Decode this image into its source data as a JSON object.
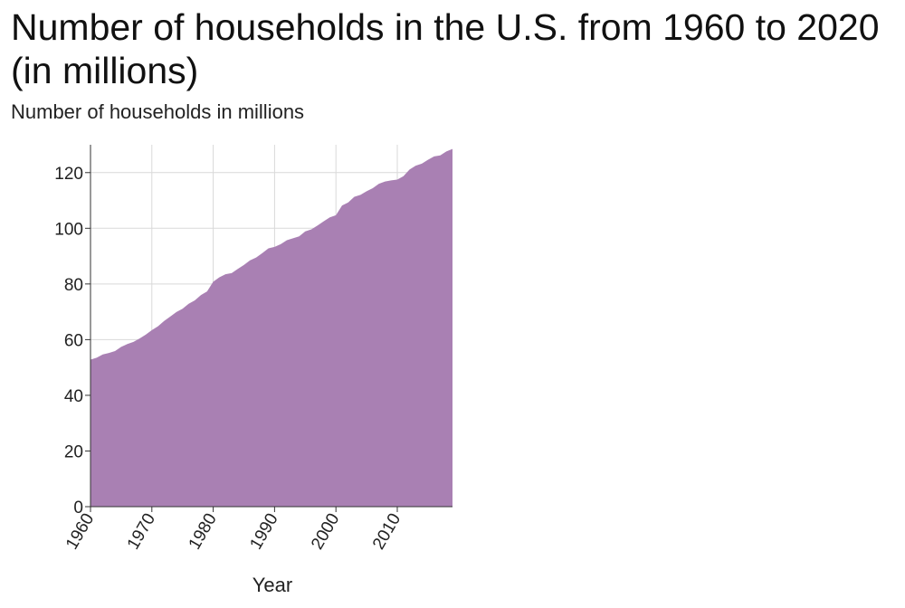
{
  "chart_data": {
    "type": "area",
    "title": "Number of households in the U.S. from 1960 to 2020 (in millions)",
    "xlabel": "Year",
    "ylabel": "Number of households in millions",
    "xlim": [
      1960,
      2019
    ],
    "ylim": [
      0,
      130
    ],
    "x_ticks": [
      "1960",
      "1970",
      "1980",
      "1990",
      "2000",
      "2010"
    ],
    "y_ticks": [
      "0",
      "20",
      "40",
      "60",
      "80",
      "100",
      "120"
    ],
    "grid": true,
    "legend": "none",
    "series": [
      {
        "color": "#a980b3",
        "x": [
          1960,
          1961,
          1962,
          1963,
          1964,
          1965,
          1966,
          1967,
          1968,
          1969,
          1970,
          1971,
          1972,
          1973,
          1974,
          1975,
          1976,
          1977,
          1978,
          1979,
          1980,
          1981,
          1982,
          1983,
          1984,
          1985,
          1986,
          1987,
          1988,
          1989,
          1990,
          1991,
          1992,
          1993,
          1994,
          1995,
          1996,
          1997,
          1998,
          1999,
          2000,
          2001,
          2002,
          2003,
          2004,
          2005,
          2006,
          2007,
          2008,
          2009,
          2010,
          2011,
          2012,
          2013,
          2014,
          2015,
          2016,
          2017,
          2018,
          2019
        ],
        "values": [
          52.8,
          53.5,
          54.7,
          55.2,
          55.9,
          57.4,
          58.4,
          59.2,
          60.4,
          61.8,
          63.4,
          64.8,
          66.7,
          68.3,
          69.9,
          71.1,
          72.9,
          74.1,
          76.0,
          77.3,
          80.8,
          82.4,
          83.5,
          83.9,
          85.4,
          86.8,
          88.5,
          89.5,
          91.1,
          92.8,
          93.3,
          94.3,
          95.7,
          96.4,
          97.1,
          98.9,
          99.6,
          101.0,
          102.5,
          103.9,
          104.7,
          108.2,
          109.3,
          111.3,
          112.0,
          113.3,
          114.4,
          116.0,
          116.8,
          117.2,
          117.5,
          118.7,
          121.1,
          122.5,
          123.2,
          124.6,
          125.8,
          126.2,
          127.6,
          128.5
        ]
      }
    ]
  }
}
